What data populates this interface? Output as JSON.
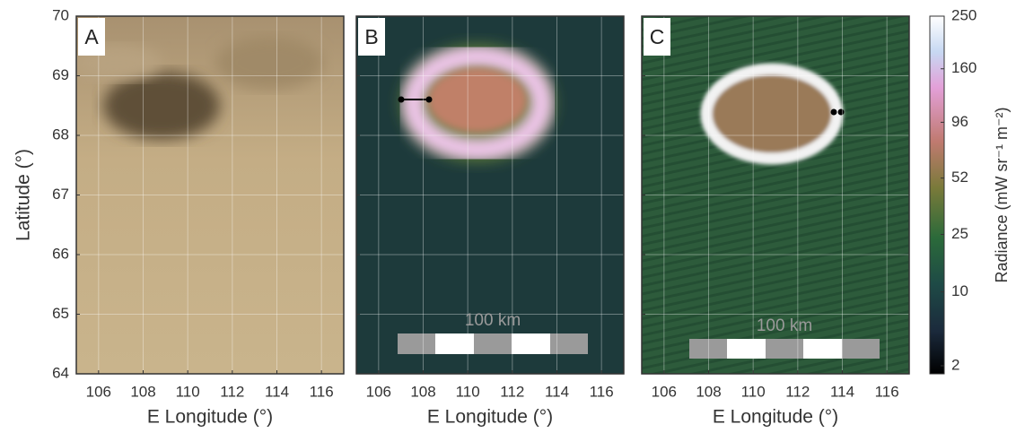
{
  "chart_data": [
    {
      "type": "image",
      "panel_label": "A",
      "xlabel": "E Longitude (°)",
      "ylabel": "Latitude (°)",
      "xlim": [
        105,
        117
      ],
      "ylim": [
        64,
        70
      ],
      "xticks": [
        106,
        108,
        110,
        112,
        114,
        116
      ],
      "yticks": [
        64,
        65,
        66,
        67,
        68,
        69,
        70
      ],
      "grid": true
    },
    {
      "type": "image",
      "panel_label": "B",
      "xlabel": "E Longitude (°)",
      "scale_bar": "100 km",
      "xlim": [
        105,
        117
      ],
      "ylim": [
        64,
        70
      ],
      "xticks": [
        106,
        108,
        110,
        112,
        114,
        116
      ],
      "yticks": [
        64,
        65,
        66,
        67,
        68,
        69,
        70
      ],
      "grid": true
    },
    {
      "type": "image",
      "panel_label": "C",
      "xlabel": "E Longitude (°)",
      "scale_bar": "100 km",
      "xlim": [
        105,
        117
      ],
      "ylim": [
        64,
        70
      ],
      "xticks": [
        106,
        108,
        110,
        112,
        114,
        116
      ],
      "yticks": [
        64,
        65,
        66,
        67,
        68,
        69,
        70
      ],
      "grid": true,
      "colorbar": {
        "label": "Radiance (mW sr⁻¹ m⁻²)",
        "ticks": [
          2,
          10,
          25,
          52,
          96,
          160,
          250
        ],
        "lim": [
          1.6,
          250
        ],
        "scale": "power",
        "exponent": 0.25
      }
    }
  ]
}
